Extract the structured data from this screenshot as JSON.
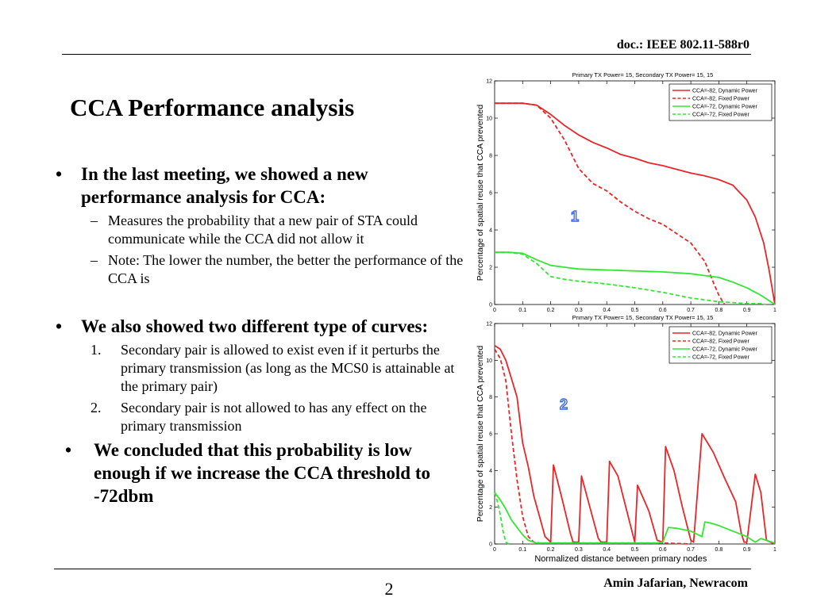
{
  "header": {
    "doc_id": "doc.: IEEE 802.11-588r0"
  },
  "slide": {
    "title": "CCA Performance analysis",
    "bullets": [
      {
        "text": "In the last meeting, we showed a new performance analysis for CCA:",
        "marker": "•",
        "sub": [
          {
            "marker": "–",
            "text": "Measures the probability that a new pair of STA could communicate while the CCA did not allow it"
          },
          {
            "marker": "–",
            "text": "Note: The lower the number, the better the performance of the CCA is"
          }
        ]
      },
      {
        "text": "We also showed two different type of curves:",
        "marker": "•",
        "sub": [
          {
            "marker": "1.",
            "text": "Secondary pair is allowed to exist even if it perturbs the primary transmission (as long as the MCS0 is attainable at the primary pair)"
          },
          {
            "marker": "2.",
            "text": "Secondary pair is not allowed to has any effect on the primary transmission"
          }
        ]
      },
      {
        "text": "We concluded that this probability is low enough if we increase the CCA threshold to -72dbm",
        "marker": "•"
      }
    ]
  },
  "footer": {
    "author": "Amin Jafarian, Newracom",
    "page_number": "2"
  },
  "colors": {
    "red": "#e8262a",
    "green": "#33e633",
    "marker_label": "#3366ff"
  },
  "chart_data": [
    {
      "type": "line",
      "title": "Primary TX Power= 15, Secondary TX Power= 15, 15",
      "ylabel": "Percentage of spatial reuse that CCA prevented",
      "xlabel": "",
      "xlim": [
        0,
        1
      ],
      "ylim": [
        0,
        12
      ],
      "xticks": [
        "0",
        "0.1",
        "0.2",
        "0.3",
        "0.4",
        "0.5",
        "0.6",
        "0.7",
        "0.8",
        "0.9",
        "1"
      ],
      "yticks": [
        "0",
        "2",
        "4",
        "6",
        "8",
        "10",
        "12"
      ],
      "legend": "top-right",
      "marker_label": "1",
      "series": [
        {
          "name": "CCA=-82, Dynamic Power",
          "color": "#e8262a",
          "dash": "solid",
          "x": [
            0,
            0.05,
            0.1,
            0.15,
            0.2,
            0.25,
            0.3,
            0.35,
            0.4,
            0.45,
            0.5,
            0.55,
            0.6,
            0.65,
            0.7,
            0.75,
            0.8,
            0.85,
            0.9,
            0.93,
            0.96,
            0.98,
            1.0
          ],
          "y": [
            10.8,
            10.8,
            10.8,
            10.7,
            10.2,
            9.6,
            9.1,
            8.7,
            8.4,
            8.05,
            7.85,
            7.6,
            7.45,
            7.25,
            7.05,
            6.9,
            6.7,
            6.4,
            5.6,
            4.7,
            3.3,
            1.8,
            0.0
          ]
        },
        {
          "name": "CCA=-82, Fixed Power",
          "color": "#e8262a",
          "dash": "dashed",
          "x": [
            0,
            0.05,
            0.1,
            0.15,
            0.2,
            0.25,
            0.3,
            0.35,
            0.4,
            0.45,
            0.5,
            0.55,
            0.6,
            0.65,
            0.7,
            0.75,
            0.78,
            0.8,
            0.82
          ],
          "y": [
            10.8,
            10.8,
            10.8,
            10.7,
            10.0,
            8.8,
            7.3,
            6.5,
            6.1,
            5.5,
            5.0,
            4.6,
            4.3,
            3.8,
            3.3,
            2.3,
            1.2,
            0.5,
            0.0
          ]
        },
        {
          "name": "CCA=-72, Dynamic Power",
          "color": "#33e633",
          "dash": "solid",
          "x": [
            0,
            0.05,
            0.1,
            0.15,
            0.2,
            0.25,
            0.3,
            0.4,
            0.5,
            0.6,
            0.7,
            0.8,
            0.85,
            0.9,
            0.95,
            1.0
          ],
          "y": [
            2.8,
            2.8,
            2.75,
            2.4,
            2.1,
            2.0,
            1.9,
            1.85,
            1.8,
            1.75,
            1.65,
            1.45,
            1.2,
            0.9,
            0.5,
            0.0
          ]
        },
        {
          "name": "CCA=-72, Fixed Power",
          "color": "#33e633",
          "dash": "dashed",
          "x": [
            0,
            0.05,
            0.1,
            0.15,
            0.2,
            0.25,
            0.3,
            0.4,
            0.5,
            0.6,
            0.7,
            0.8,
            0.85,
            0.9,
            0.95,
            0.97
          ],
          "y": [
            2.8,
            2.8,
            2.7,
            2.2,
            1.5,
            1.35,
            1.25,
            1.1,
            0.9,
            0.65,
            0.35,
            0.15,
            0.1,
            0.05,
            0.05,
            0.0
          ]
        }
      ]
    },
    {
      "type": "line",
      "title": "Primary TX Power= 15, Secondary TX Power= 15, 15",
      "ylabel": "Percentage of spatial reuse that CCA prevented",
      "xlabel": "Normalized distance between primary nodes",
      "xlim": [
        0,
        1
      ],
      "ylim": [
        0,
        12
      ],
      "xticks": [
        "0",
        "0.1",
        "0.2",
        "0.3",
        "0.4",
        "0.5",
        "0.6",
        "0.7",
        "0.8",
        "0.9",
        "1"
      ],
      "yticks": [
        "0",
        "2",
        "4",
        "6",
        "8",
        "10",
        "12"
      ],
      "legend": "top-right",
      "marker_label": "2",
      "series": [
        {
          "name": "CCA=-82, Dynamic Power",
          "color": "#e8262a",
          "dash": "solid",
          "x": [
            0,
            0.02,
            0.04,
            0.06,
            0.08,
            0.1,
            0.12,
            0.14,
            0.16,
            0.18,
            0.2,
            0.21,
            0.24,
            0.27,
            0.28,
            0.3,
            0.31,
            0.34,
            0.37,
            0.38,
            0.4,
            0.41,
            0.44,
            0.48,
            0.5,
            0.51,
            0.55,
            0.58,
            0.6,
            0.61,
            0.64,
            0.67,
            0.7,
            0.71,
            0.74,
            0.78,
            0.82,
            0.86,
            0.88,
            0.89,
            0.9,
            0.93,
            0.95,
            0.97,
            1.0
          ],
          "y": [
            10.8,
            10.6,
            10.0,
            9.0,
            8.0,
            5.5,
            4.2,
            2.6,
            1.5,
            0.4,
            0.1,
            4.3,
            2.5,
            0.6,
            0.1,
            0.1,
            3.7,
            2.0,
            0.3,
            0.1,
            0.1,
            4.5,
            3.7,
            1.3,
            0.1,
            3.2,
            1.8,
            0.2,
            0.1,
            5.3,
            4.0,
            2.0,
            0.2,
            0.1,
            6.0,
            5.0,
            3.6,
            2.3,
            0.6,
            0.1,
            0.1,
            3.8,
            2.8,
            0.2,
            0.0
          ]
        },
        {
          "name": "CCA=-82, Fixed Power",
          "color": "#e8262a",
          "dash": "dashed",
          "x": [
            0,
            0.02,
            0.04,
            0.06,
            0.08,
            0.1,
            0.12,
            0.14,
            0.16,
            0.2,
            0.3,
            0.4,
            0.5,
            0.6,
            0.7
          ],
          "y": [
            10.6,
            10.1,
            8.9,
            6.0,
            3.5,
            1.5,
            0.4,
            0.1,
            0.05,
            0.05,
            0.05,
            0.05,
            0.05,
            0.05,
            0.0
          ]
        },
        {
          "name": "CCA=-72, Dynamic Power",
          "color": "#33e633",
          "dash": "solid",
          "x": [
            0,
            0.02,
            0.04,
            0.06,
            0.08,
            0.1,
            0.12,
            0.15,
            0.2,
            0.3,
            0.4,
            0.5,
            0.58,
            0.6,
            0.62,
            0.65,
            0.7,
            0.74,
            0.75,
            0.78,
            0.8,
            0.85,
            0.9,
            0.93,
            0.95,
            1.0
          ],
          "y": [
            2.8,
            2.4,
            1.9,
            1.3,
            0.9,
            0.5,
            0.2,
            0.05,
            0.05,
            0.05,
            0.05,
            0.05,
            0.05,
            0.1,
            0.9,
            0.85,
            0.7,
            0.4,
            1.2,
            1.1,
            1.0,
            0.7,
            0.4,
            0.1,
            0.3,
            0.05
          ]
        },
        {
          "name": "CCA=-72, Fixed Power",
          "color": "#33e633",
          "dash": "dashed",
          "x": [
            0,
            0.01,
            0.02,
            0.03,
            0.04,
            0.05
          ],
          "y": [
            2.8,
            2.3,
            1.6,
            0.7,
            0.1,
            0.0
          ]
        }
      ]
    }
  ]
}
